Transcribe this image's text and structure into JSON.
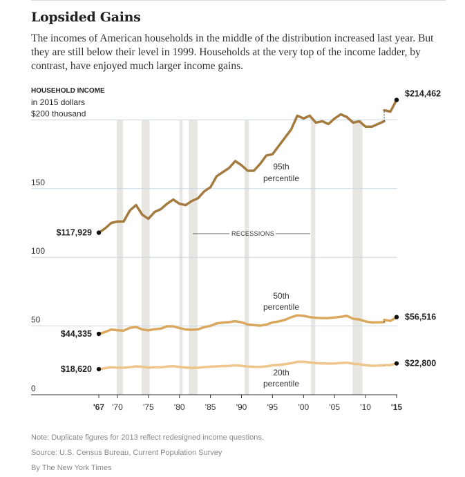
{
  "page": {
    "title": "Lopsided Gains",
    "subtitle": "The incomes of American households in the middle of the distribution increased last year. But they are still below their level in 1999. Households at the very top of the income ladder, by contrast, have enjoyed much larger income gains.",
    "footer": {
      "note": "Note: Duplicate figures for 2013 reflect redesigned income questions.",
      "source": "Source: U.S. Census Bureau, Current Population Survey",
      "credit": "By The New York Times"
    }
  },
  "colors": {
    "p95": "#a47a3e",
    "p50": "#d9a85e",
    "p20": "#eec58a",
    "recession": "#e8e6e1",
    "grid": "#c8d6e0"
  },
  "chart_data": {
    "type": "line",
    "y_axis_title": "HOUSEHOLD INCOME",
    "y_axis_subtitle": "in 2015 dollars",
    "ylim": [
      0,
      215
    ],
    "xlim": [
      1967,
      2015
    ],
    "y_ticks": [
      {
        "value": 200,
        "label": "$200 thousand"
      },
      {
        "value": 150,
        "label": "150"
      },
      {
        "value": 100,
        "label": "100"
      },
      {
        "value": 50,
        "label": "50"
      },
      {
        "value": 0,
        "label": "0"
      }
    ],
    "x_ticks": [
      {
        "value": 1967,
        "label": "'67"
      },
      {
        "value": 1970,
        "label": "'70"
      },
      {
        "value": 1975,
        "label": "'75"
      },
      {
        "value": 1980,
        "label": "'80"
      },
      {
        "value": 1985,
        "label": "'85"
      },
      {
        "value": 1990,
        "label": "'90"
      },
      {
        "value": 1995,
        "label": "'95"
      },
      {
        "value": 2000,
        "label": "'00"
      },
      {
        "value": 2005,
        "label": "'05"
      },
      {
        "value": 2010,
        "label": "'10"
      },
      {
        "value": 2015,
        "label": "'15"
      }
    ],
    "recessions": [
      [
        1969.9,
        1970.9
      ],
      [
        1973.9,
        1975.2
      ],
      [
        1980.0,
        1980.5
      ],
      [
        1981.5,
        1982.9
      ],
      [
        1990.5,
        1991.2
      ],
      [
        2001.2,
        2001.9
      ],
      [
        2007.9,
        2009.5
      ]
    ],
    "recessions_label": "RECESSIONS",
    "duplicate_year": 2013,
    "series": [
      {
        "key": "p95",
        "label_lines": [
          "95th",
          "percentile"
        ],
        "start_label": "$117,929",
        "end_label": "$214,462",
        "x": [
          1967,
          1968,
          1969,
          1970,
          1971,
          1972,
          1973,
          1974,
          1975,
          1976,
          1977,
          1978,
          1979,
          1980,
          1981,
          1982,
          1983,
          1984,
          1985,
          1986,
          1987,
          1988,
          1989,
          1990,
          1991,
          1992,
          1993,
          1994,
          1995,
          1996,
          1997,
          1998,
          1999,
          2000,
          2001,
          2002,
          2003,
          2004,
          2005,
          2006,
          2007,
          2008,
          2009,
          2010,
          2011,
          2012,
          2013
        ],
        "values": [
          117.9,
          121,
          125,
          126,
          126,
          134,
          138,
          131,
          128,
          133,
          135,
          139,
          142,
          139,
          138,
          141,
          143,
          148,
          151,
          159,
          162,
          165,
          170,
          167,
          163,
          163,
          168,
          174,
          175,
          181,
          187,
          193,
          203,
          201,
          203,
          198,
          199,
          197,
          201,
          204,
          202,
          198,
          199,
          195,
          195,
          197,
          199
        ],
        "x2": [
          2013,
          2014,
          2015
        ],
        "values2": [
          207,
          206,
          214.5
        ]
      },
      {
        "key": "p50",
        "label_lines": [
          "50th",
          "percentile"
        ],
        "start_label": "$44,335",
        "end_label": "$56,516",
        "x": [
          1967,
          1968,
          1969,
          1970,
          1971,
          1972,
          1973,
          1974,
          1975,
          1976,
          1977,
          1978,
          1979,
          1980,
          1981,
          1982,
          1983,
          1984,
          1985,
          1986,
          1987,
          1988,
          1989,
          1990,
          1991,
          1992,
          1993,
          1994,
          1995,
          1996,
          1997,
          1998,
          1999,
          2000,
          2001,
          2002,
          2003,
          2004,
          2005,
          2006,
          2007,
          2008,
          2009,
          2010,
          2011,
          2012,
          2013
        ],
        "values": [
          44.3,
          45.6,
          47.4,
          47.0,
          46.7,
          48.6,
          49.4,
          47.5,
          46.9,
          47.7,
          48.1,
          49.8,
          49.8,
          48.5,
          47.5,
          47.3,
          47.6,
          49.2,
          50.1,
          51.9,
          52.5,
          52.8,
          53.5,
          52.7,
          51.1,
          50.7,
          50.3,
          51.0,
          52.6,
          53.3,
          54.5,
          56.4,
          57.8,
          57.4,
          56.5,
          56.0,
          55.8,
          55.8,
          56.2,
          56.7,
          57.4,
          55.3,
          54.8,
          53.3,
          52.6,
          52.7,
          52.8
        ],
        "x2": [
          2013,
          2014,
          2015
        ],
        "values2": [
          54.5,
          53.7,
          56.5
        ]
      },
      {
        "key": "p20",
        "label_lines": [
          "20th",
          "percentile"
        ],
        "start_label": "$18,620",
        "end_label": "$22,800",
        "x": [
          1967,
          1968,
          1969,
          1970,
          1971,
          1972,
          1973,
          1974,
          1975,
          1976,
          1977,
          1978,
          1979,
          1980,
          1981,
          1982,
          1983,
          1984,
          1985,
          1986,
          1987,
          1988,
          1989,
          1990,
          1991,
          1992,
          1993,
          1994,
          1995,
          1996,
          1997,
          1998,
          1999,
          2000,
          2001,
          2002,
          2003,
          2004,
          2005,
          2006,
          2007,
          2008,
          2009,
          2010,
          2011,
          2012,
          2013
        ],
        "values": [
          18.6,
          19.3,
          20.0,
          19.7,
          19.6,
          20.1,
          20.6,
          20.3,
          19.7,
          20.0,
          20.0,
          20.5,
          20.7,
          20.2,
          19.8,
          19.5,
          19.6,
          20.1,
          20.4,
          20.6,
          20.9,
          21.0,
          21.4,
          21.1,
          20.5,
          20.3,
          20.2,
          20.6,
          21.4,
          21.7,
          22.2,
          23.0,
          23.9,
          24.0,
          23.5,
          23.0,
          22.8,
          22.7,
          22.8,
          23.1,
          23.3,
          22.6,
          22.2,
          21.5,
          21.1,
          21.2,
          21.4
        ],
        "x2": [
          2013,
          2014,
          2015
        ],
        "values2": [
          21.6,
          21.6,
          22.8
        ]
      }
    ]
  }
}
